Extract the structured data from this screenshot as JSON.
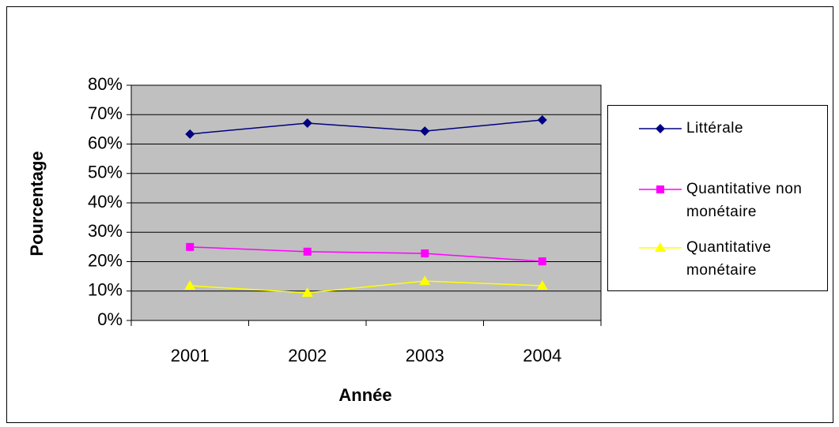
{
  "chart_data": {
    "type": "line",
    "x_label": "Année",
    "y_label": "Pourcentage",
    "categories": [
      "2001",
      "2002",
      "2003",
      "2004"
    ],
    "series": [
      {
        "name": "Littérale",
        "color": "#000080",
        "marker": "diamond",
        "values": [
          63.4,
          67.1,
          64.4,
          68.2
        ]
      },
      {
        "name": "Quantitative non monétaire",
        "color": "#ff00ff",
        "marker": "square",
        "values": [
          25.0,
          23.4,
          22.8,
          20.1
        ]
      },
      {
        "name": "Quantitative monétaire",
        "color": "#ffff00",
        "marker": "triangle",
        "values": [
          11.8,
          9.4,
          13.4,
          11.8
        ]
      }
    ],
    "ylim": [
      0,
      80
    ],
    "yticks": [
      {
        "value": 0,
        "label": "0%"
      },
      {
        "value": 10,
        "label": "10%"
      },
      {
        "value": 20,
        "label": "20%"
      },
      {
        "value": 30,
        "label": "30%"
      },
      {
        "value": 40,
        "label": "40%"
      },
      {
        "value": 50,
        "label": "50%"
      },
      {
        "value": 60,
        "label": "60%"
      },
      {
        "value": 70,
        "label": "70%"
      },
      {
        "value": 80,
        "label": "80%"
      }
    ],
    "grid": true,
    "plot_background": "#c0c0c0",
    "legend": "right"
  }
}
